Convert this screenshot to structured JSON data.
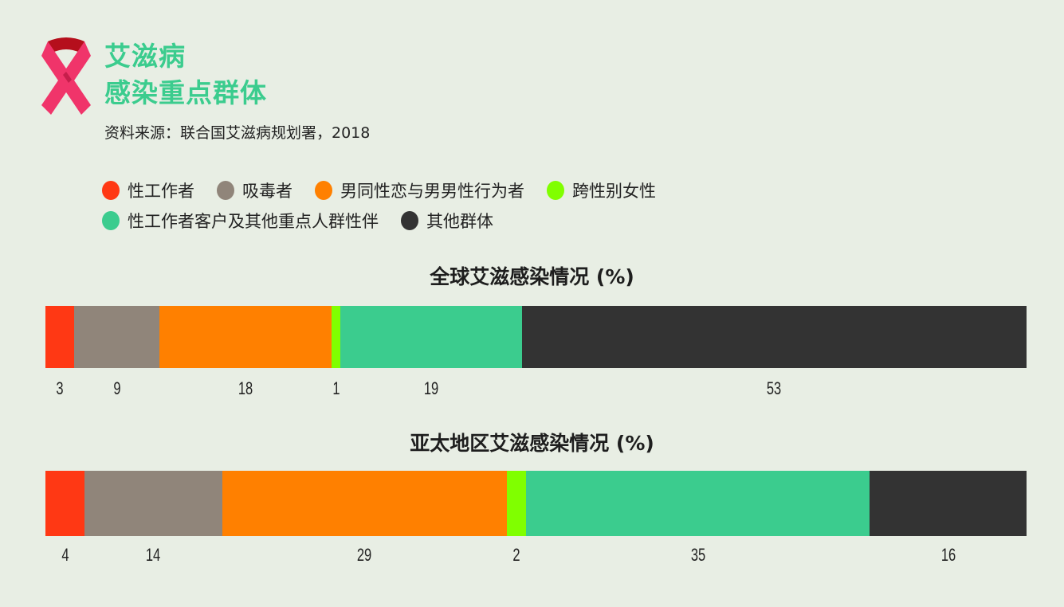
{
  "header": {
    "title_line1": "艾滋病",
    "title_line2": "感染重点群体",
    "source": "资料来源：联合国艾滋病规划署，2018",
    "icon": "awareness-ribbon-icon"
  },
  "legend": [
    {
      "label": "性工作者",
      "color": "#ff3814"
    },
    {
      "label": "吸毒者",
      "color": "#90857a"
    },
    {
      "label": "男同性恋与男男性行为者",
      "color": "#ff8000"
    },
    {
      "label": "跨性别女性",
      "color": "#80ff00"
    },
    {
      "label": "性工作者客户及其他重点人群性伴",
      "color": "#3bcc8e"
    },
    {
      "label": "其他群体",
      "color": "#333333"
    }
  ],
  "chart_data": [
    {
      "type": "bar",
      "orientation": "horizontal-stacked",
      "title": "全球艾滋感染情况 (%)",
      "categories": [
        "性工作者",
        "吸毒者",
        "男同性恋与男男性行为者",
        "跨性别女性",
        "性工作者客户及其他重点人群性伴",
        "其他群体"
      ],
      "values": [
        3,
        9,
        18,
        1,
        19,
        53
      ],
      "colors": [
        "#ff3814",
        "#90857a",
        "#ff8000",
        "#80ff00",
        "#3bcc8e",
        "#333333"
      ],
      "labels": [
        "3",
        "9",
        "18",
        "1",
        "19",
        "53"
      ],
      "xlabel": "",
      "ylabel": "",
      "grid": false,
      "legend_position": "top"
    },
    {
      "type": "bar",
      "orientation": "horizontal-stacked",
      "title": "亚太地区艾滋感染情况 (%)",
      "categories": [
        "性工作者",
        "吸毒者",
        "男同性恋与男男性行为者",
        "跨性别女性",
        "性工作者客户及其他重点人群性伴",
        "其他群体"
      ],
      "values": [
        4,
        14,
        29,
        2,
        35,
        16
      ],
      "colors": [
        "#ff3814",
        "#90857a",
        "#ff8000",
        "#80ff00",
        "#3bcc8e",
        "#333333"
      ],
      "labels": [
        "4",
        "14",
        "29",
        "2",
        "35",
        "16"
      ],
      "xlabel": "",
      "ylabel": "",
      "grid": false,
      "legend_position": "top"
    }
  ]
}
